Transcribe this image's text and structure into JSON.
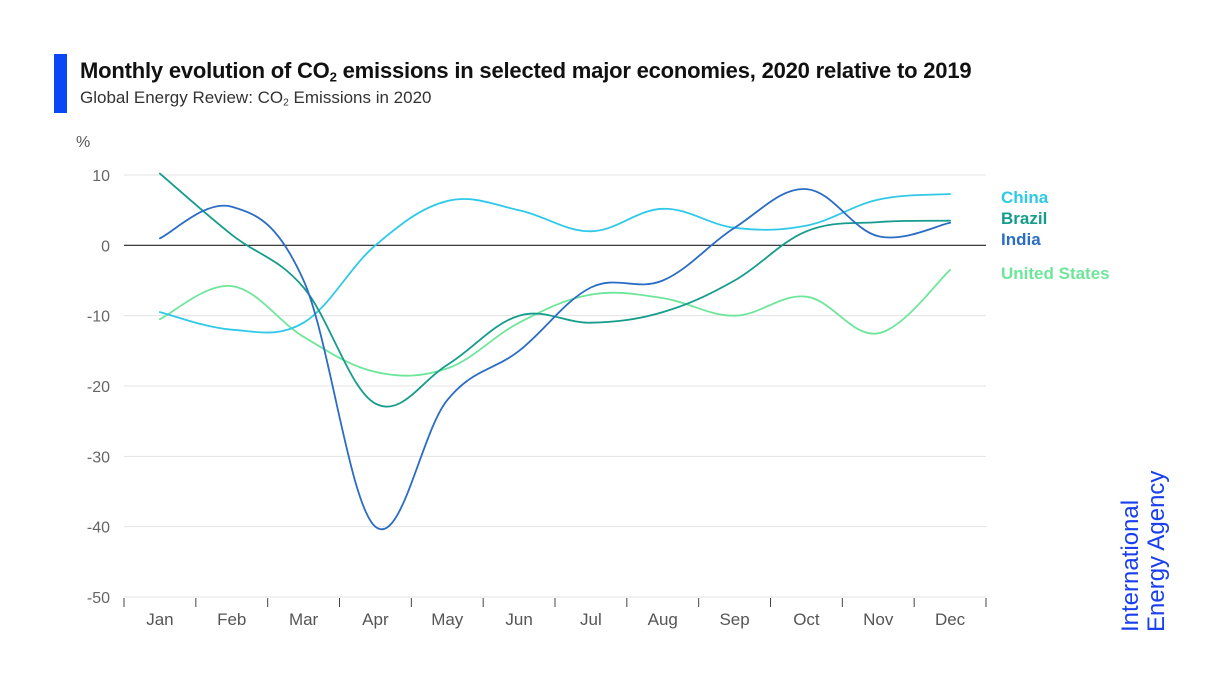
{
  "header": {
    "title_pre": "Monthly evolution of CO",
    "title_sub": "2",
    "title_post": " emissions in selected major economies, 2020 relative to 2019",
    "subtitle_pre": "Global Energy Review: CO",
    "subtitle_sub": "2",
    "subtitle_post": " Emissions in 2020",
    "accent_color": "#0a47f5"
  },
  "logo": {
    "line1": "International",
    "line2": "Energy Agency",
    "color": "#1a3ff0"
  },
  "chart_data": {
    "type": "line",
    "ylabel": "%",
    "ylim": [
      -50,
      10
    ],
    "yticks": [
      10,
      0,
      -10,
      -20,
      -30,
      -40,
      -50
    ],
    "categories": [
      "Jan",
      "Feb",
      "Mar",
      "Apr",
      "May",
      "Jun",
      "Jul",
      "Aug",
      "Sep",
      "Oct",
      "Nov",
      "Dec"
    ],
    "grid": true,
    "legend_placement": "right",
    "series": [
      {
        "name": "China",
        "color": "#2ec9e8",
        "values": [
          -9.5,
          -12,
          -11,
          0,
          6.3,
          5,
          2,
          5.2,
          2.5,
          2.8,
          6.5,
          7.3
        ]
      },
      {
        "name": "Brazil",
        "color": "#159c8c",
        "values": [
          10.2,
          1.5,
          -6,
          -22.5,
          -17,
          -10,
          -11,
          -9.5,
          -5,
          2,
          3.3,
          3.5
        ]
      },
      {
        "name": "India",
        "color": "#2b6cc4",
        "values": [
          1,
          5.5,
          -5,
          -40,
          -22,
          -15,
          -6,
          -5,
          2.5,
          8,
          1.3,
          3.2
        ]
      },
      {
        "name": "United States",
        "color": "#6ee69a",
        "values": [
          -10.5,
          -5.8,
          -13,
          -18,
          -17.5,
          -11,
          -7,
          -7.5,
          -10,
          -7.3,
          -12.5,
          -3.5
        ]
      }
    ]
  }
}
